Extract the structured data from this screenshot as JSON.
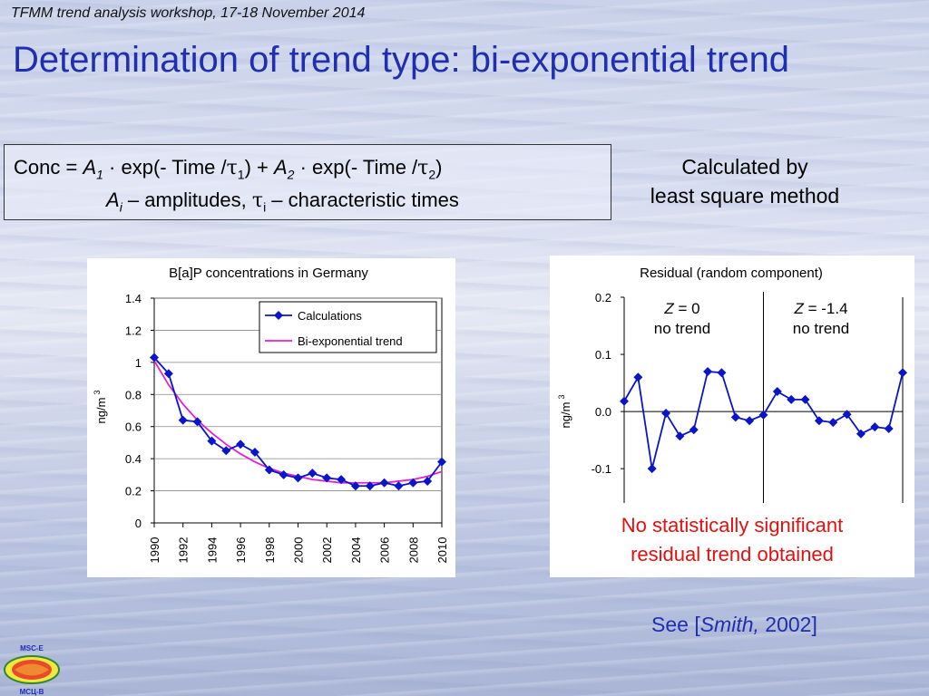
{
  "header": "TFMM trend analysis workshop, 17-18 November 2014",
  "title": "Determination of trend type: bi-exponential trend",
  "formula": {
    "conc": "Conc = ",
    "a1": "A",
    "sub1": "1",
    "dot_exp1": " · exp(- Time /",
    "tau": "τ",
    "tsub1": "1",
    "plus": ") + ",
    "a2": "A",
    "sub2": "2",
    "dot_exp2": " · exp(- Time /",
    "tsub2": "2",
    "close": ")",
    "ai": "A",
    "subi": "i",
    "amp": " – amplitudes, ",
    "tsubi": "i",
    "char": " – characteristic times"
  },
  "calc_note": [
    "Calculated by",
    "least square method"
  ],
  "residual_note": [
    "No statistically significant",
    "residual trend obtained"
  ],
  "reference": {
    "prefix": "See [",
    "author": "Smith,",
    "year": " 2002]"
  },
  "logo": {
    "top": "MSC-E",
    "bottom": "МСЦ-В"
  },
  "chart_data": [
    {
      "type": "line",
      "title": "B[a]P concentrations in Germany",
      "ylabel": "ng/m3",
      "ylim": [
        0,
        1.4
      ],
      "yticks": [
        "0",
        "0.2",
        "0.4",
        "0.6",
        "0.8",
        "1",
        "1.2",
        "1.4"
      ],
      "xlim": [
        1990,
        2010
      ],
      "xticks": [
        "1990",
        "1992",
        "1994",
        "1996",
        "1998",
        "2000",
        "2002",
        "2004",
        "2006",
        "2008",
        "2010"
      ],
      "legend_position": "top-right",
      "series": [
        {
          "name": "Calculations",
          "color": "#0a14c8",
          "marker": "diamond",
          "x": [
            1990,
            1991,
            1992,
            1993,
            1994,
            1995,
            1996,
            1997,
            1998,
            1999,
            2000,
            2001,
            2002,
            2003,
            2004,
            2005,
            2006,
            2007,
            2008,
            2009,
            2010
          ],
          "y": [
            1.03,
            0.93,
            0.64,
            0.63,
            0.51,
            0.45,
            0.49,
            0.44,
            0.33,
            0.3,
            0.28,
            0.31,
            0.28,
            0.27,
            0.23,
            0.23,
            0.25,
            0.23,
            0.25,
            0.26,
            0.38
          ]
        },
        {
          "name": "Bi-exponential trend",
          "color": "#e020d8",
          "marker": "none",
          "x": [
            1990,
            1991,
            1992,
            1993,
            1994,
            1995,
            1996,
            1997,
            1998,
            1999,
            2000,
            2001,
            2002,
            2003,
            2004,
            2005,
            2006,
            2007,
            2008,
            2009,
            2010
          ],
          "y": [
            1.01,
            0.86,
            0.74,
            0.64,
            0.56,
            0.49,
            0.43,
            0.38,
            0.34,
            0.31,
            0.29,
            0.27,
            0.26,
            0.25,
            0.25,
            0.25,
            0.25,
            0.26,
            0.27,
            0.29,
            0.32
          ]
        }
      ]
    },
    {
      "type": "line",
      "title": "Residual (random component)",
      "ylabel": "ng/m3",
      "ylim": [
        -0.16,
        0.2
      ],
      "yticks": [
        "-0.1",
        "0.0",
        "0.1",
        "0.2"
      ],
      "ytick_values": [
        -0.1,
        0.0,
        0.1,
        0.2
      ],
      "divider_x": 2000,
      "xlim": [
        1990,
        2010
      ],
      "annotations": [
        {
          "z": "Z",
          "value": " = 0",
          "text": "no trend"
        },
        {
          "z": "Z",
          "value": " = -1.4",
          "text": "no trend"
        }
      ],
      "series": [
        {
          "color": "#0a14c8",
          "marker": "diamond",
          "x": [
            1990,
            1991,
            1992,
            1993,
            1994,
            1995,
            1996,
            1997,
            1998,
            1999,
            2000,
            2001,
            2002,
            2003,
            2004,
            2005,
            2006,
            2007,
            2008,
            2009,
            2010
          ],
          "y": [
            0.018,
            0.06,
            -0.1,
            -0.003,
            -0.043,
            -0.032,
            0.07,
            0.068,
            -0.01,
            -0.016,
            -0.006,
            0.035,
            0.021,
            0.021,
            -0.016,
            -0.019,
            -0.005,
            -0.039,
            -0.027,
            -0.03,
            0.068
          ]
        }
      ]
    }
  ]
}
